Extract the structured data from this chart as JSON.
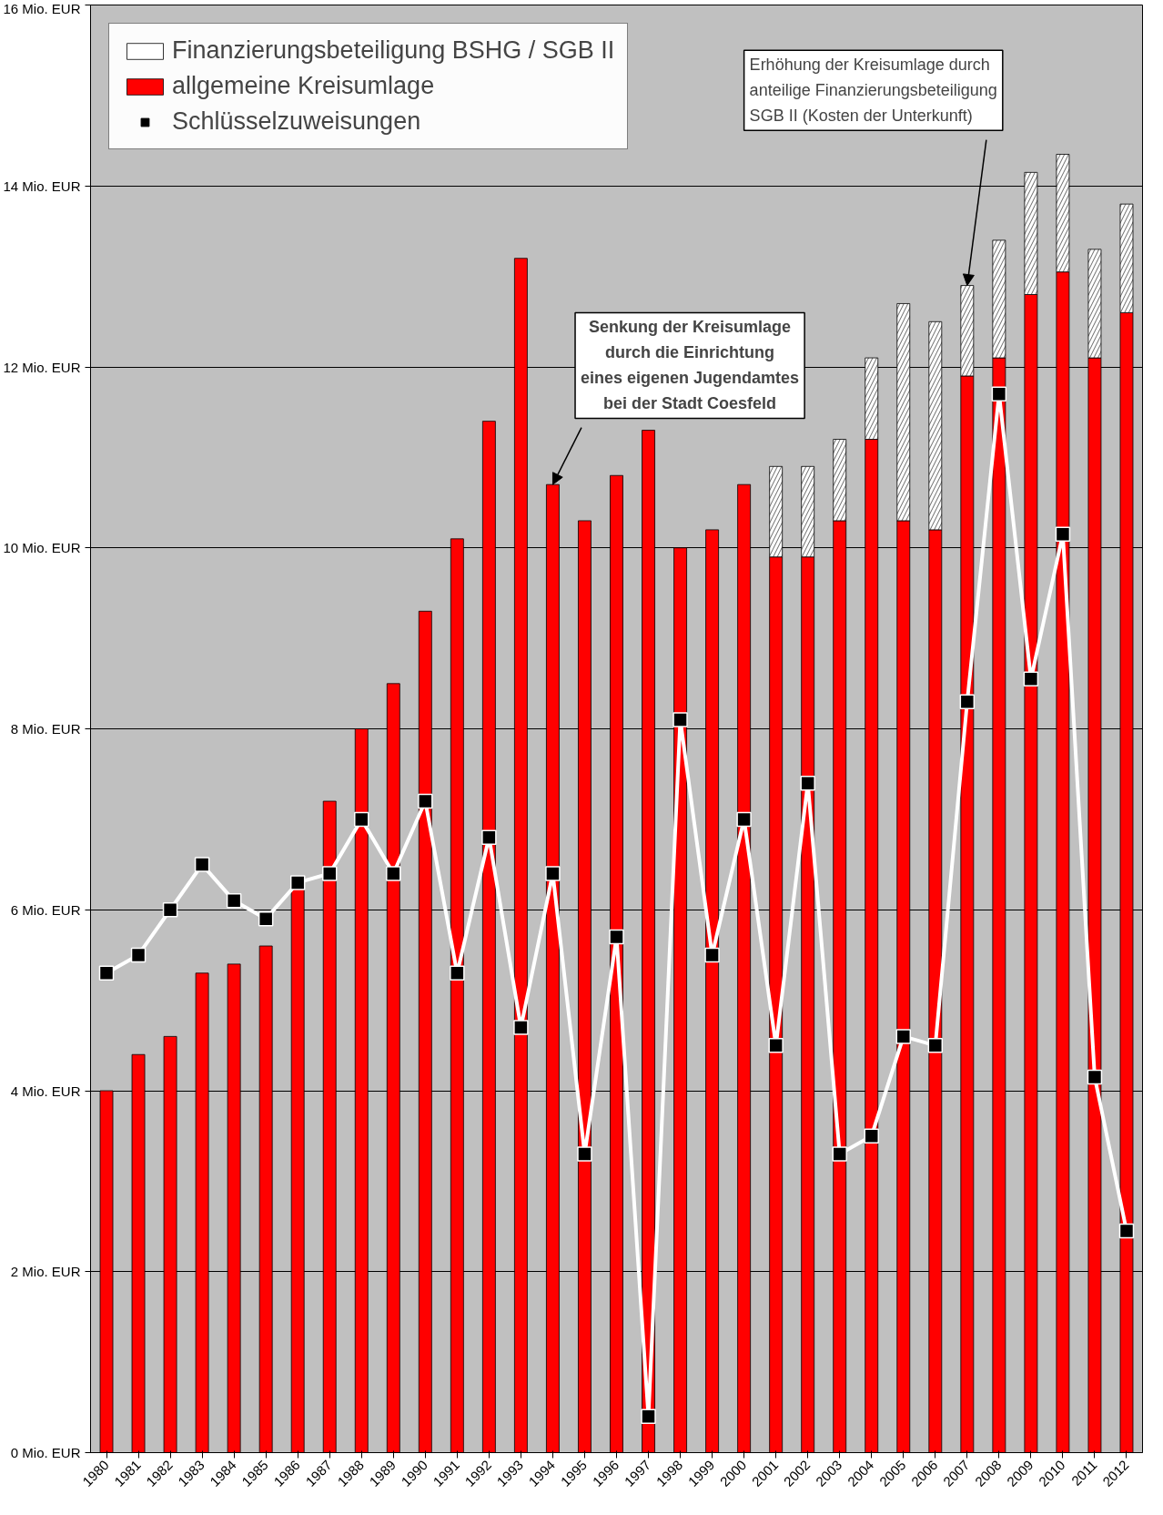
{
  "chart_data": {
    "type": "bar",
    "stacked": true,
    "categories": [
      "1980",
      "1981",
      "1982",
      "1983",
      "1984",
      "1985",
      "1986",
      "1987",
      "1988",
      "1989",
      "1990",
      "1991",
      "1992",
      "1993",
      "1994",
      "1995",
      "1996",
      "1997",
      "1998",
      "1999",
      "2000",
      "2001",
      "2002",
      "2003",
      "2004",
      "2005",
      "2006",
      "2007",
      "2008",
      "2009",
      "2010",
      "2011",
      "2012"
    ],
    "series": [
      {
        "name": "allgemeine Kreisumlage",
        "color": "#ff0000",
        "values": [
          4.0,
          4.4,
          4.6,
          5.3,
          5.4,
          5.6,
          6.3,
          7.2,
          8.0,
          8.5,
          9.3,
          10.1,
          11.4,
          13.2,
          10.7,
          10.3,
          10.8,
          11.3,
          10.0,
          10.2,
          10.7,
          9.9,
          9.9,
          10.3,
          11.2,
          10.3,
          10.2,
          11.9,
          12.1,
          12.8,
          13.05,
          12.1,
          12.6
        ]
      },
      {
        "name": "Finanzierungsbeteiligung BSHG / SGB II",
        "color": "#ffffff",
        "values": [
          null,
          null,
          null,
          null,
          null,
          null,
          null,
          null,
          null,
          null,
          null,
          null,
          null,
          null,
          null,
          null,
          null,
          null,
          null,
          null,
          null,
          1.0,
          1.0,
          0.9,
          0.9,
          2.4,
          2.3,
          1.0,
          1.3,
          1.35,
          1.3,
          1.2,
          1.2
        ]
      },
      {
        "name": "Schlüsselzuweisungen",
        "type": "line",
        "color": "#ffffff",
        "marker": "square",
        "values": [
          5.3,
          5.5,
          6.0,
          6.5,
          6.1,
          5.9,
          6.3,
          6.4,
          7.0,
          6.4,
          7.2,
          5.3,
          6.8,
          4.7,
          6.4,
          3.3,
          5.7,
          0.4,
          8.1,
          5.5,
          7.0,
          4.5,
          7.4,
          3.3,
          3.5,
          4.6,
          4.5,
          8.3,
          11.7,
          8.55,
          10.15,
          4.15,
          2.45
        ]
      }
    ],
    "ylim": [
      0,
      16
    ],
    "yticks": [
      {
        "value": 0,
        "label": "0 Mio. EUR"
      },
      {
        "value": 2,
        "label": "2 Mio. EUR"
      },
      {
        "value": 4,
        "label": "4 Mio. EUR"
      },
      {
        "value": 6,
        "label": "6 Mio. EUR"
      },
      {
        "value": 8,
        "label": "8 Mio. EUR"
      },
      {
        "value": 10,
        "label": "10 Mio. EUR"
      },
      {
        "value": 12,
        "label": "12 Mio. EUR"
      },
      {
        "value": 14,
        "label": "14 Mio. EUR"
      },
      {
        "value": 16,
        "label": "16 Mio. EUR"
      }
    ],
    "grid": "y",
    "legend": "top left",
    "annotations": [
      {
        "text": "Senkung der Kreisumlage durch die Einrichtung eines eigenen Jugendamtes bei der Stadt Coesfeld",
        "x": "1994",
        "y": 10.7
      },
      {
        "text": "Erhöhung der Kreisumlage durch anteilige Finanzierungsbeteiligung SGB II (Kosten der Unterkunft)",
        "x": "2007",
        "y": 12.9
      }
    ]
  }
}
